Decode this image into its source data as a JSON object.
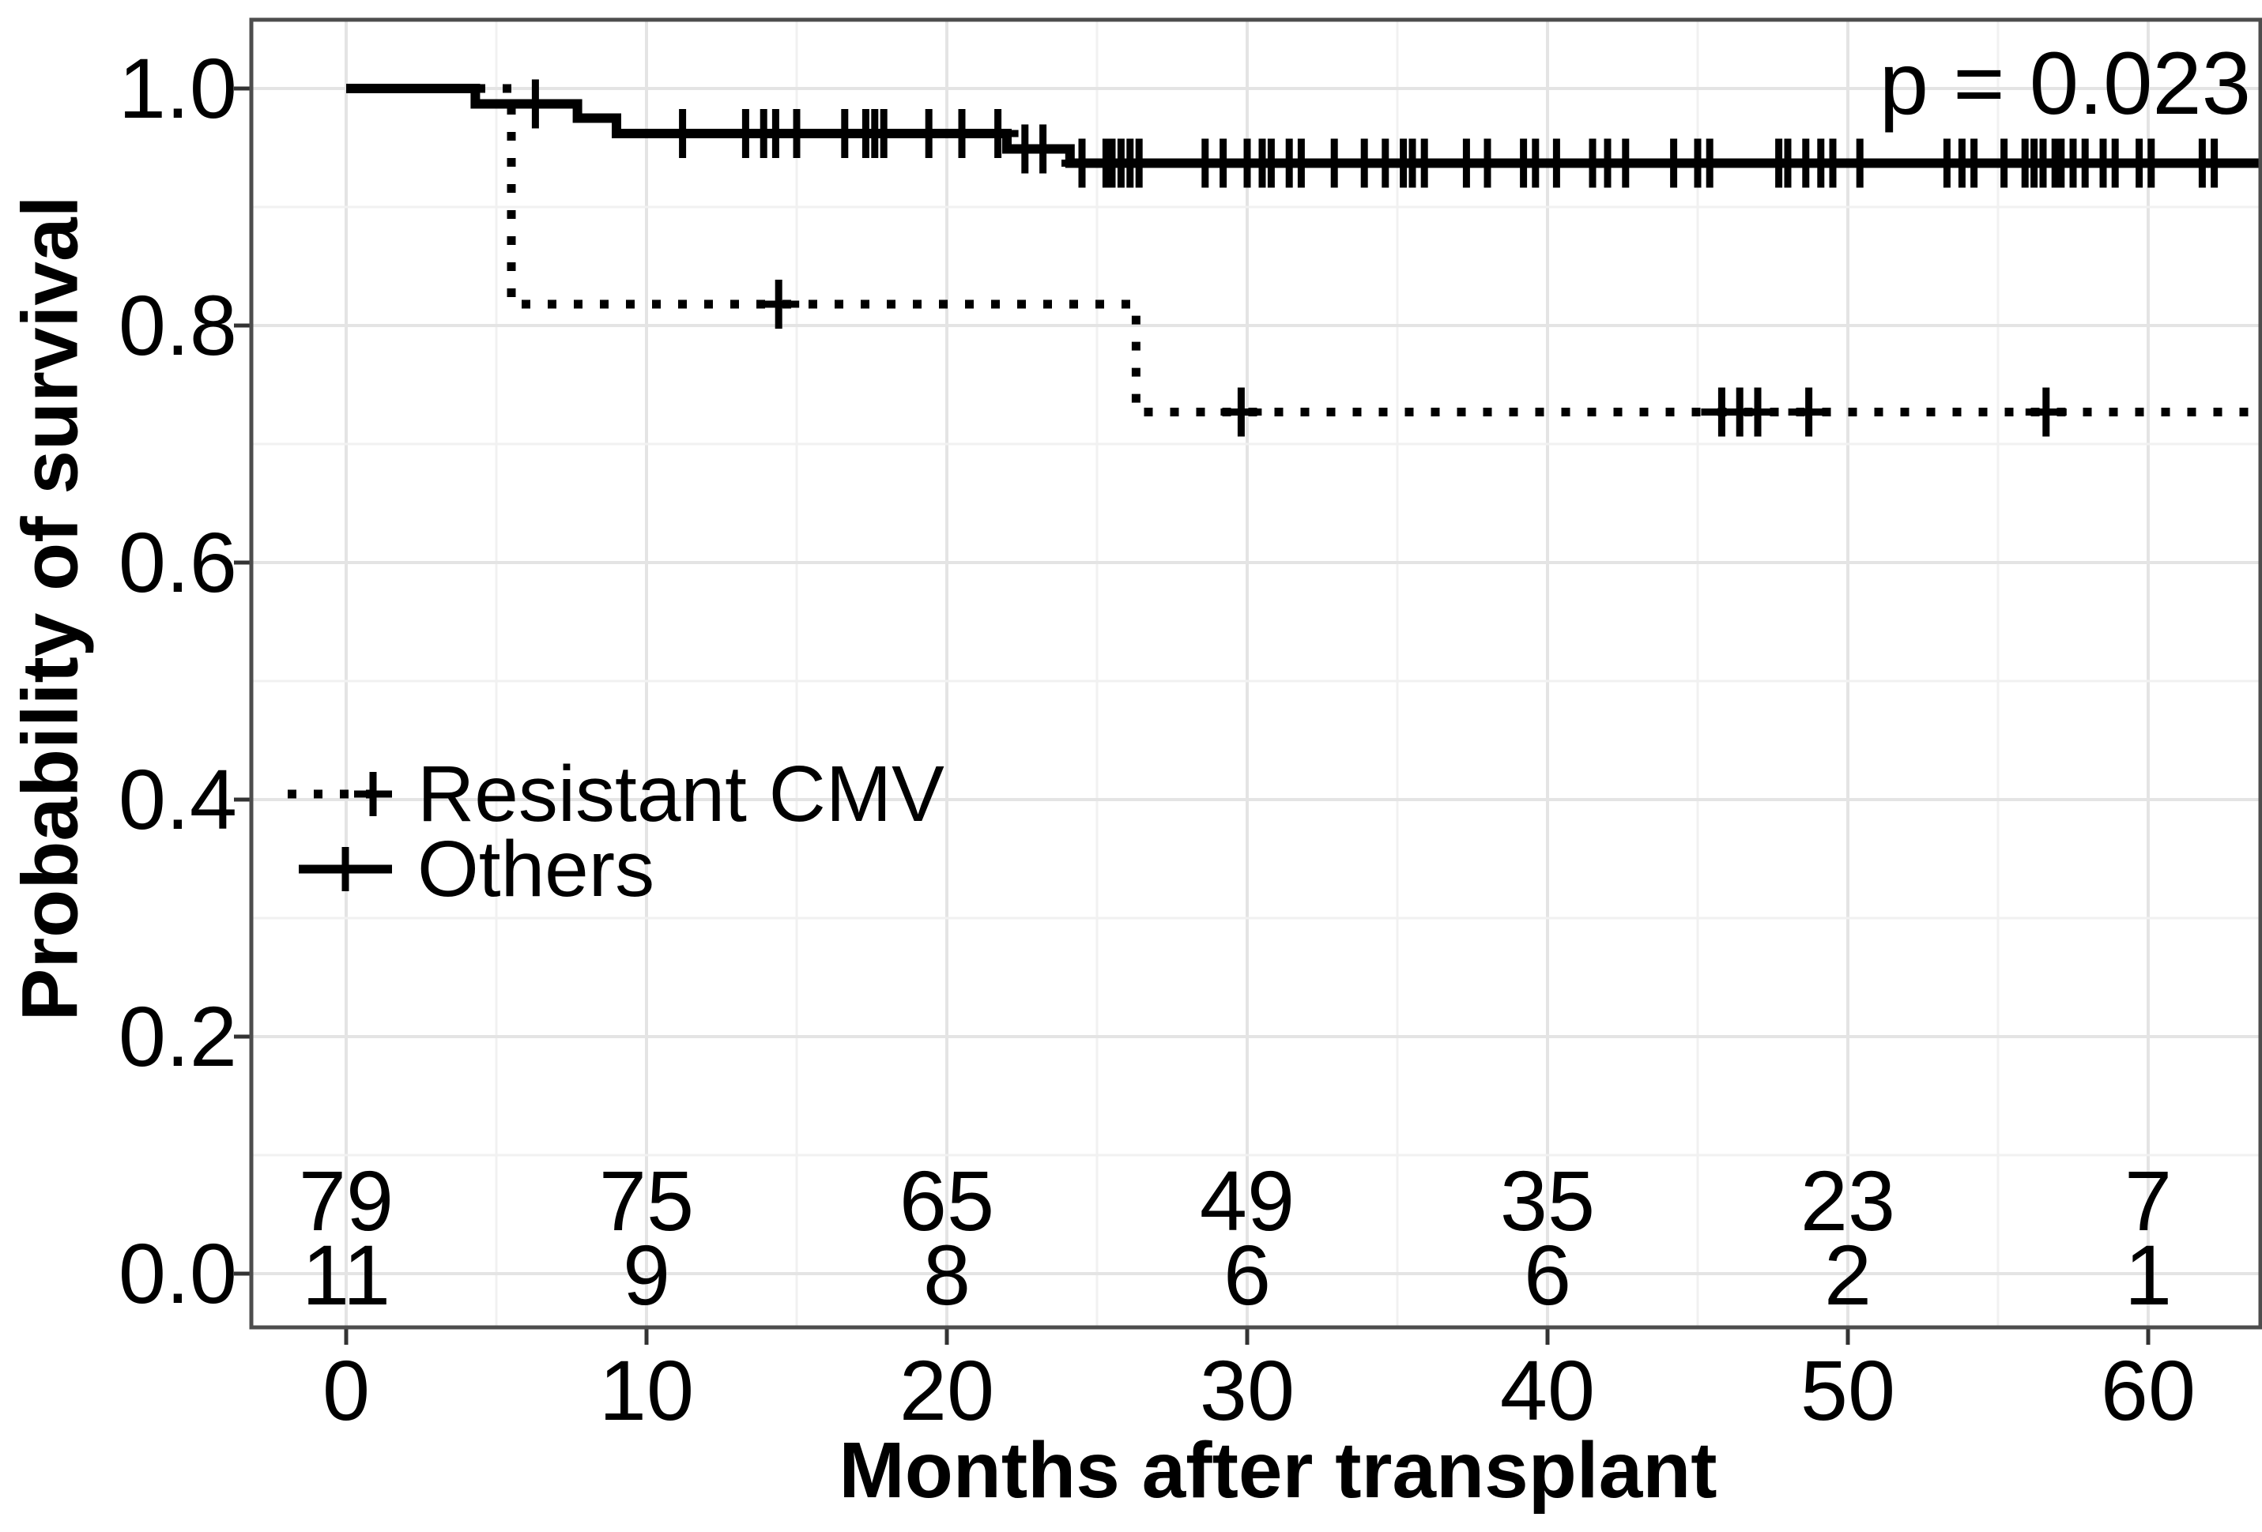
{
  "figure": {
    "p_value_label": "p = 0.023",
    "x_axis_title": "Months after transplant",
    "y_axis_title": "Probability of survival"
  },
  "legend": {
    "position": "inside-middle-left",
    "items": [
      {
        "label": "Resistant CMV",
        "line_style": "dotted",
        "marker": "plus"
      },
      {
        "label": "Others",
        "line_style": "solid",
        "marker": "plus"
      }
    ]
  },
  "colors": {
    "curve": "#000000",
    "text": "#000000",
    "panel_border": "#4d4d4d",
    "grid_major": "#e4e4e4",
    "grid_minor": "#f1f1f1",
    "tick_mark": "#333333",
    "background": "#ffffff"
  },
  "chart_data": {
    "type": "line",
    "subtype": "kaplan-meier-step",
    "title": "",
    "xlabel": "Months after transplant",
    "ylabel": "Probability of survival",
    "xlim": [
      0,
      63.7
    ],
    "ylim": [
      -0.045,
      1.06
    ],
    "grid": {
      "major": true,
      "minor": true,
      "x_major_every": 10,
      "x_minor_every": 5,
      "y_major_every": 0.2,
      "y_minor_every": 0.1
    },
    "x_ticks": [
      0,
      10,
      20,
      30,
      40,
      50,
      60
    ],
    "x_tick_labels": [
      "0",
      "10",
      "20",
      "30",
      "40",
      "50",
      "60"
    ],
    "y_ticks": [
      1.0,
      0.8,
      0.6,
      0.4,
      0.2,
      0.0
    ],
    "y_tick_labels": [
      "1.0",
      "0.8",
      "0.6",
      "0.4",
      "0.2",
      "0.0"
    ],
    "annotations": [
      {
        "text": "p = 0.023",
        "position": "top-right"
      }
    ],
    "series": [
      {
        "name": "Others",
        "line_style": "solid",
        "color": "#000000",
        "steps": [
          {
            "t": 0.0,
            "p": 1.0
          },
          {
            "t": 4.3,
            "p": 0.987
          },
          {
            "t": 7.7,
            "p": 0.975
          },
          {
            "t": 9.0,
            "p": 0.962
          },
          {
            "t": 22.0,
            "p": 0.949
          },
          {
            "t": 24.1,
            "p": 0.937
          }
        ],
        "end_t": 63.7,
        "censor_times": [
          6.3,
          11.2,
          13.3,
          13.9,
          14.3,
          15.0,
          16.6,
          17.3,
          17.6,
          17.9,
          19.4,
          20.5,
          21.7,
          22.6,
          23.2,
          24.5,
          25.3,
          25.5,
          25.8,
          26.1,
          26.4,
          28.6,
          29.2,
          30.0,
          30.5,
          30.8,
          31.4,
          31.8,
          32.9,
          33.9,
          34.6,
          35.2,
          35.5,
          35.9,
          37.3,
          38.0,
          39.2,
          39.6,
          40.3,
          41.5,
          42.0,
          42.6,
          44.2,
          45.0,
          45.4,
          47.7,
          48.0,
          48.6,
          49.1,
          49.5,
          50.4,
          53.3,
          53.8,
          54.2,
          55.2,
          55.9,
          56.2,
          56.5,
          56.9,
          57.1,
          57.5,
          57.9,
          58.5,
          58.9,
          59.7,
          60.1,
          61.8,
          62.2
        ]
      },
      {
        "name": "Resistant CMV",
        "line_style": "dotted",
        "color": "#000000",
        "steps": [
          {
            "t": 0.0,
            "p": 1.0
          },
          {
            "t": 5.5,
            "p": 0.818
          },
          {
            "t": 26.3,
            "p": 0.727
          }
        ],
        "end_t": 63.7,
        "censor_times": [
          14.4,
          29.8,
          45.8,
          46.4,
          47.0,
          48.7,
          56.6
        ]
      }
    ],
    "risk_table": {
      "times": [
        0,
        10,
        20,
        30,
        40,
        50,
        60
      ],
      "rows": [
        {
          "group": "Others",
          "counts": [
            "79",
            "75",
            "65",
            "49",
            "35",
            "23",
            "7"
          ]
        },
        {
          "group": "Resistant CMV",
          "counts": [
            "11",
            "9",
            "8",
            "6",
            "6",
            "2",
            "1"
          ]
        }
      ]
    }
  }
}
